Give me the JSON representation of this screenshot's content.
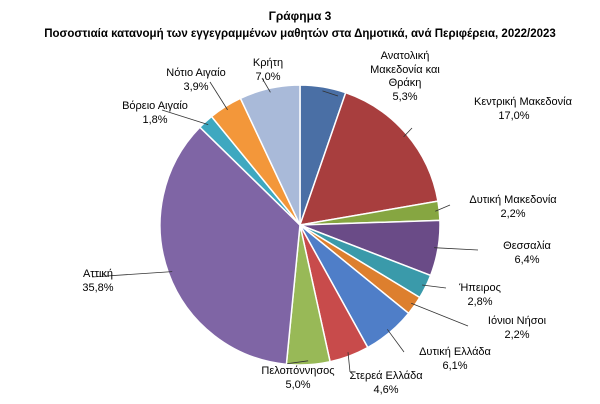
{
  "header": {
    "title": "Γράφημα 3",
    "subtitle": "Ποσοστιαία κατανομή των εγγεγραμμένων μαθητών στα Δημοτικά, ανά Περιφέρεια, 2022/2023"
  },
  "chart_data": {
    "type": "pie",
    "title": "Γράφημα 3",
    "subtitle": "Ποσοστιαία κατανομή των εγγεγραμμένων μαθητών στα Δημοτικά, ανά Περιφέρεια, 2022/2023",
    "start": "12 o'clock, clockwise",
    "slices": [
      {
        "label": "Ανατολική Μακεδονία και Θράκη",
        "value": 5.3,
        "value_label": "5,3%",
        "color": "#4A6FA5"
      },
      {
        "label": "Κεντρική Μακεδονία",
        "value": 17.0,
        "value_label": "17,0%",
        "color": "#A83E3E"
      },
      {
        "label": "Δυτική Μακεδονία",
        "value": 2.2,
        "value_label": "2,2%",
        "color": "#86A641"
      },
      {
        "label": "Θεσσαλία",
        "value": 6.4,
        "value_label": "6,4%",
        "color": "#6A4B87"
      },
      {
        "label": "Ήπειρος",
        "value": 2.8,
        "value_label": "2,8%",
        "color": "#3A9AAA"
      },
      {
        "label": "Ιόνιοι Νήσοι",
        "value": 2.2,
        "value_label": "2,2%",
        "color": "#DD7F2E"
      },
      {
        "label": "Δυτική Ελλάδα",
        "value": 6.1,
        "value_label": "6,1%",
        "color": "#4F7EC8"
      },
      {
        "label": "Στερεά Ελλάδα",
        "value": 4.6,
        "value_label": "4,6%",
        "color": "#C84B4B"
      },
      {
        "label": "Πελοπόννησος",
        "value": 5.0,
        "value_label": "5,0%",
        "color": "#98B957"
      },
      {
        "label": "Αττική",
        "value": 35.8,
        "value_label": "35,8%",
        "color": "#7F65A5"
      },
      {
        "label": "Βόρειο Αιγαίο",
        "value": 1.8,
        "value_label": "1,8%",
        "color": "#3EA8C0"
      },
      {
        "label": "Νότιο Αιγαίο",
        "value": 3.9,
        "value_label": "3,9%",
        "color": "#F3973A"
      },
      {
        "label": "Κρήτη",
        "value": 7.0,
        "value_label": "7,0%",
        "color": "#A9BAD9"
      }
    ]
  }
}
